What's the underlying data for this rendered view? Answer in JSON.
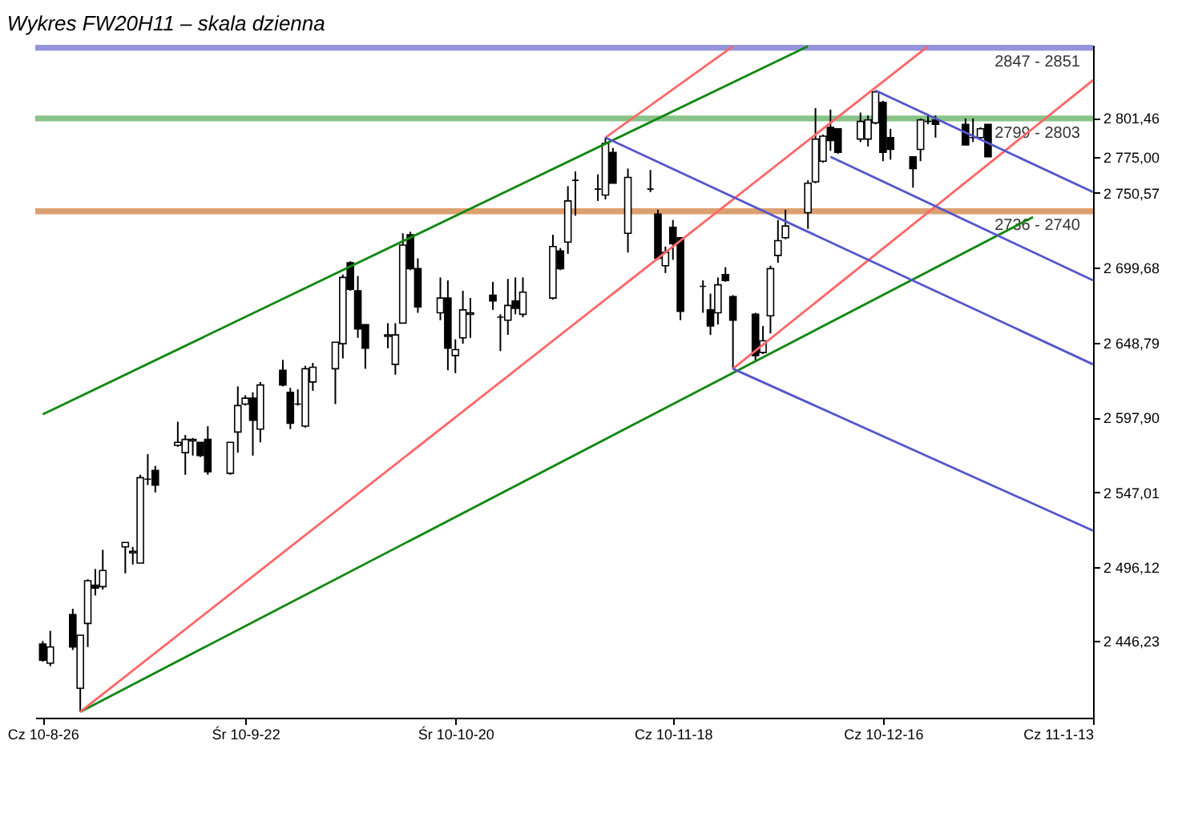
{
  "chart_data": {
    "type": "candlestick",
    "title": "Wykres FW20H11 – skala dzienna",
    "x": [
      "2010-08-26",
      "2010-08-27",
      "2010-08-30",
      "2010-08-31",
      "2010-09-01",
      "2010-09-02",
      "2010-09-03",
      "2010-09-06",
      "2010-09-07",
      "2010-09-08",
      "2010-09-09",
      "2010-09-10",
      "2010-09-13",
      "2010-09-14",
      "2010-09-15",
      "2010-09-16",
      "2010-09-17",
      "2010-09-20",
      "2010-09-21",
      "2010-09-22",
      "2010-09-23",
      "2010-09-24",
      "2010-09-27",
      "2010-09-28",
      "2010-09-29",
      "2010-09-30",
      "2010-10-01",
      "2010-10-04",
      "2010-10-05",
      "2010-10-06",
      "2010-10-07",
      "2010-10-08",
      "2010-10-11",
      "2010-10-12",
      "2010-10-13",
      "2010-10-14",
      "2010-10-15",
      "2010-10-18",
      "2010-10-19",
      "2010-10-20",
      "2010-10-21",
      "2010-10-22",
      "2010-10-25",
      "2010-10-26",
      "2010-10-27",
      "2010-10-28",
      "2010-10-29",
      "2010-11-02",
      "2010-11-03",
      "2010-11-04",
      "2010-11-05",
      "2010-11-08",
      "2010-11-09",
      "2010-11-10",
      "2010-11-12",
      "2010-11-15",
      "2010-11-16",
      "2010-11-17",
      "2010-11-18",
      "2010-11-19",
      "2010-11-22",
      "2010-11-23",
      "2010-11-24",
      "2010-11-25",
      "2010-11-26",
      "2010-11-29",
      "2010-11-30",
      "2010-12-01",
      "2010-12-02",
      "2010-12-03",
      "2010-12-06",
      "2010-12-07",
      "2010-12-08",
      "2010-12-09",
      "2010-12-10",
      "2010-12-13",
      "2010-12-14",
      "2010-12-15",
      "2010-12-16",
      "2010-12-17",
      "2010-12-20",
      "2010-12-21",
      "2010-12-22",
      "2010-12-23",
      "2010-12-27",
      "2010-12-28",
      "2010-12-29",
      "2010-12-30"
    ],
    "ohlc": [
      [
        2444,
        2446,
        2432,
        2433
      ],
      [
        2431,
        2453,
        2429,
        2442
      ],
      [
        2464,
        2468,
        2440,
        2442
      ],
      [
        2414,
        2450,
        2398,
        2450
      ],
      [
        2458,
        2488,
        2442,
        2487
      ],
      [
        2484,
        2495,
        2477,
        2482
      ],
      [
        2483,
        2508,
        2481,
        2494
      ],
      [
        2510,
        2513,
        2492,
        2513
      ],
      [
        2506,
        2510,
        2498,
        2507
      ],
      [
        2499,
        2559,
        2499,
        2557
      ],
      [
        2556,
        2573,
        2552,
        2556
      ],
      [
        2562,
        2565,
        2547,
        2552
      ],
      [
        2579,
        2595,
        2578,
        2581
      ],
      [
        2574,
        2586,
        2559,
        2583
      ],
      [
        2582,
        2584,
        2572,
        2583
      ],
      [
        2581,
        2581,
        2571,
        2572
      ],
      [
        2583,
        2592,
        2559,
        2561
      ],
      [
        2560,
        2581,
        2559,
        2581
      ],
      [
        2588,
        2619,
        2574,
        2606
      ],
      [
        2607,
        2613,
        2606,
        2611
      ],
      [
        2611,
        2615,
        2572,
        2596
      ],
      [
        2590,
        2622,
        2581,
        2620
      ],
      [
        2630,
        2637,
        2619,
        2620
      ],
      [
        2615,
        2618,
        2590,
        2594
      ],
      [
        2607,
        2617,
        2606,
        2607
      ],
      [
        2592,
        2633,
        2591,
        2631
      ],
      [
        2622,
        2635,
        2616,
        2632
      ],
      [
        2631,
        2649,
        2607,
        2649
      ],
      [
        2648,
        2695,
        2638,
        2693
      ],
      [
        2703,
        2704,
        2684,
        2685
      ],
      [
        2684,
        2694,
        2652,
        2658
      ],
      [
        2661,
        2661,
        2631,
        2645
      ],
      [
        2653,
        2662,
        2645,
        2654
      ],
      [
        2634,
        2662,
        2627,
        2654
      ],
      [
        2662,
        2723,
        2662,
        2715
      ],
      [
        2722,
        2724,
        2698,
        2699
      ],
      [
        2699,
        2706,
        2669,
        2673
      ],
      [
        2669,
        2693,
        2664,
        2679
      ],
      [
        2679,
        2691,
        2630,
        2645
      ],
      [
        2640,
        2651,
        2628,
        2644
      ],
      [
        2652,
        2684,
        2648,
        2671
      ],
      [
        2668,
        2679,
        2652,
        2669
      ],
      [
        2681,
        2690,
        2671,
        2677
      ],
      [
        2666,
        2668,
        2643,
        2666
      ],
      [
        2664,
        2692,
        2654,
        2674
      ],
      [
        2677,
        2693,
        2668,
        2672
      ],
      [
        2668,
        2693,
        2666,
        2683
      ],
      [
        2679,
        2722,
        2678,
        2714
      ],
      [
        2711,
        2713,
        2698,
        2699
      ],
      [
        2717,
        2755,
        2709,
        2745
      ],
      [
        2759,
        2765,
        2735,
        2759
      ],
      [
        2753,
        2763,
        2745,
        2753
      ],
      [
        2749,
        2788,
        2746,
        2784
      ],
      [
        2778,
        2781,
        2757,
        2757
      ],
      [
        2723,
        2767,
        2710,
        2761
      ],
      [
        2753,
        2766,
        2751,
        2753
      ],
      [
        2736,
        2739,
        2705,
        2706
      ],
      [
        2701,
        2714,
        2696,
        2710
      ],
      [
        2727,
        2732,
        2705,
        2716
      ],
      [
        2720,
        2720,
        2664,
        2670
      ],
      [
        2687,
        2691,
        2669,
        2687
      ],
      [
        2671,
        2682,
        2654,
        2660
      ],
      [
        2669,
        2693,
        2661,
        2688
      ],
      [
        2695,
        2700,
        2690,
        2691
      ],
      [
        2680,
        2681,
        2631,
        2664
      ],
      [
        2668,
        2669,
        2636,
        2640
      ],
      [
        2642,
        2660,
        2641,
        2650
      ],
      [
        2667,
        2701,
        2655,
        2699
      ],
      [
        2708,
        2732,
        2703,
        2718
      ],
      [
        2720,
        2739,
        2719,
        2728
      ],
      [
        2737,
        2759,
        2726,
        2757
      ],
      [
        2758,
        2808,
        2757,
        2787
      ],
      [
        2772,
        2790,
        2771,
        2789
      ],
      [
        2795,
        2807,
        2779,
        2786
      ],
      [
        2794,
        2794,
        2777,
        2778
      ],
      [
        2787,
        2805,
        2785,
        2799
      ],
      [
        2787,
        2803,
        2782,
        2800
      ],
      [
        2798,
        2820,
        2797,
        2819
      ],
      [
        2812,
        2813,
        2772,
        2778
      ],
      [
        2788,
        2794,
        2773,
        2780
      ],
      [
        2775,
        2775,
        2754,
        2767
      ],
      [
        2780,
        2801,
        2772,
        2800
      ],
      [
        2799,
        2804,
        2797,
        2799
      ],
      [
        2800,
        2803,
        2788,
        2797
      ],
      [
        2797,
        2801,
        2783,
        2783
      ],
      [
        2788,
        2801,
        2785,
        2788
      ],
      [
        2788,
        2795,
        2787,
        2794
      ],
      [
        2797,
        2797,
        2775,
        2775
      ]
    ],
    "series": [
      {
        "type": "line",
        "color": "#118811",
        "x": [
          "2010-08-26",
          "2010-12-06"
        ],
        "values": [
          2600,
          2850
        ]
      },
      {
        "type": "line",
        "color": "#118811",
        "x": [
          "2010-08-31",
          "2011-01-05"
        ],
        "values": [
          2398,
          2734
        ]
      },
      {
        "type": "line",
        "color": "#ff6666",
        "x": [
          "2010-11-09",
          "2010-11-26"
        ],
        "values": [
          2788,
          2850
        ]
      },
      {
        "type": "line",
        "color": "#ff6666",
        "x": [
          "2010-08-31",
          "2010-12-22"
        ],
        "values": [
          2398,
          2850
        ]
      },
      {
        "type": "line",
        "color": "#ff6666",
        "x": [
          "2010-11-26",
          "2011-01-13"
        ],
        "values": [
          2631,
          2827
        ]
      },
      {
        "type": "line",
        "color": "#5555cc",
        "x": [
          "2010-11-09",
          "2011-01-13"
        ],
        "values": [
          2788,
          2634
        ]
      },
      {
        "type": "line",
        "color": "#5555cc",
        "x": [
          "2010-11-26",
          "2011-01-13"
        ],
        "values": [
          2631,
          2521
        ]
      },
      {
        "type": "line",
        "color": "#5555cc",
        "x": [
          "2010-12-15",
          "2011-01-13"
        ],
        "values": [
          2820,
          2751
        ]
      },
      {
        "type": "line",
        "color": "#5555cc",
        "x": [
          "2010-12-09",
          "2011-01-13"
        ],
        "values": [
          2775,
          2691
        ]
      }
    ],
    "bands": [
      {
        "axis": "y",
        "from": 2847,
        "to": 2851,
        "label": "2847 - 2851",
        "color": "#6666cc"
      },
      {
        "axis": "y",
        "from": 2799,
        "to": 2803,
        "label": "2799 - 2803",
        "color": "#55aa55"
      },
      {
        "axis": "y",
        "from": 2736,
        "to": 2740,
        "label": "2736 - 2740",
        "color": "#cc7733"
      }
    ],
    "xlim": [
      "2010-08-25",
      "2011-01-13"
    ],
    "xticks": [
      {
        "value": "2010-08-26",
        "label": "Cz 10-8-26"
      },
      {
        "value": "2010-09-22",
        "label": "Śr 10-9-22"
      },
      {
        "value": "2010-10-20",
        "label": "Śr 10-10-20"
      },
      {
        "value": "2010-11-18",
        "label": "Cz 10-11-18"
      },
      {
        "value": "2010-12-16",
        "label": "Cz 10-12-16"
      },
      {
        "value": "2011-01-13",
        "label": "Cz 11-1-13"
      }
    ],
    "ylim": [
      2394,
      2851
    ],
    "yticks": [
      {
        "value": 2446.23,
        "label": "2 446,23"
      },
      {
        "value": 2496.12,
        "label": "2 496,12"
      },
      {
        "value": 2547.01,
        "label": "2 547,01"
      },
      {
        "value": 2597.9,
        "label": "2 597,90"
      },
      {
        "value": 2648.79,
        "label": "2 648,79"
      },
      {
        "value": 2699.68,
        "label": "2 699,68"
      },
      {
        "value": 2750.57,
        "label": "2 750,57"
      },
      {
        "value": 2775,
        "label": "2 775,00"
      },
      {
        "value": 2801.46,
        "label": "2 801,46"
      }
    ]
  }
}
